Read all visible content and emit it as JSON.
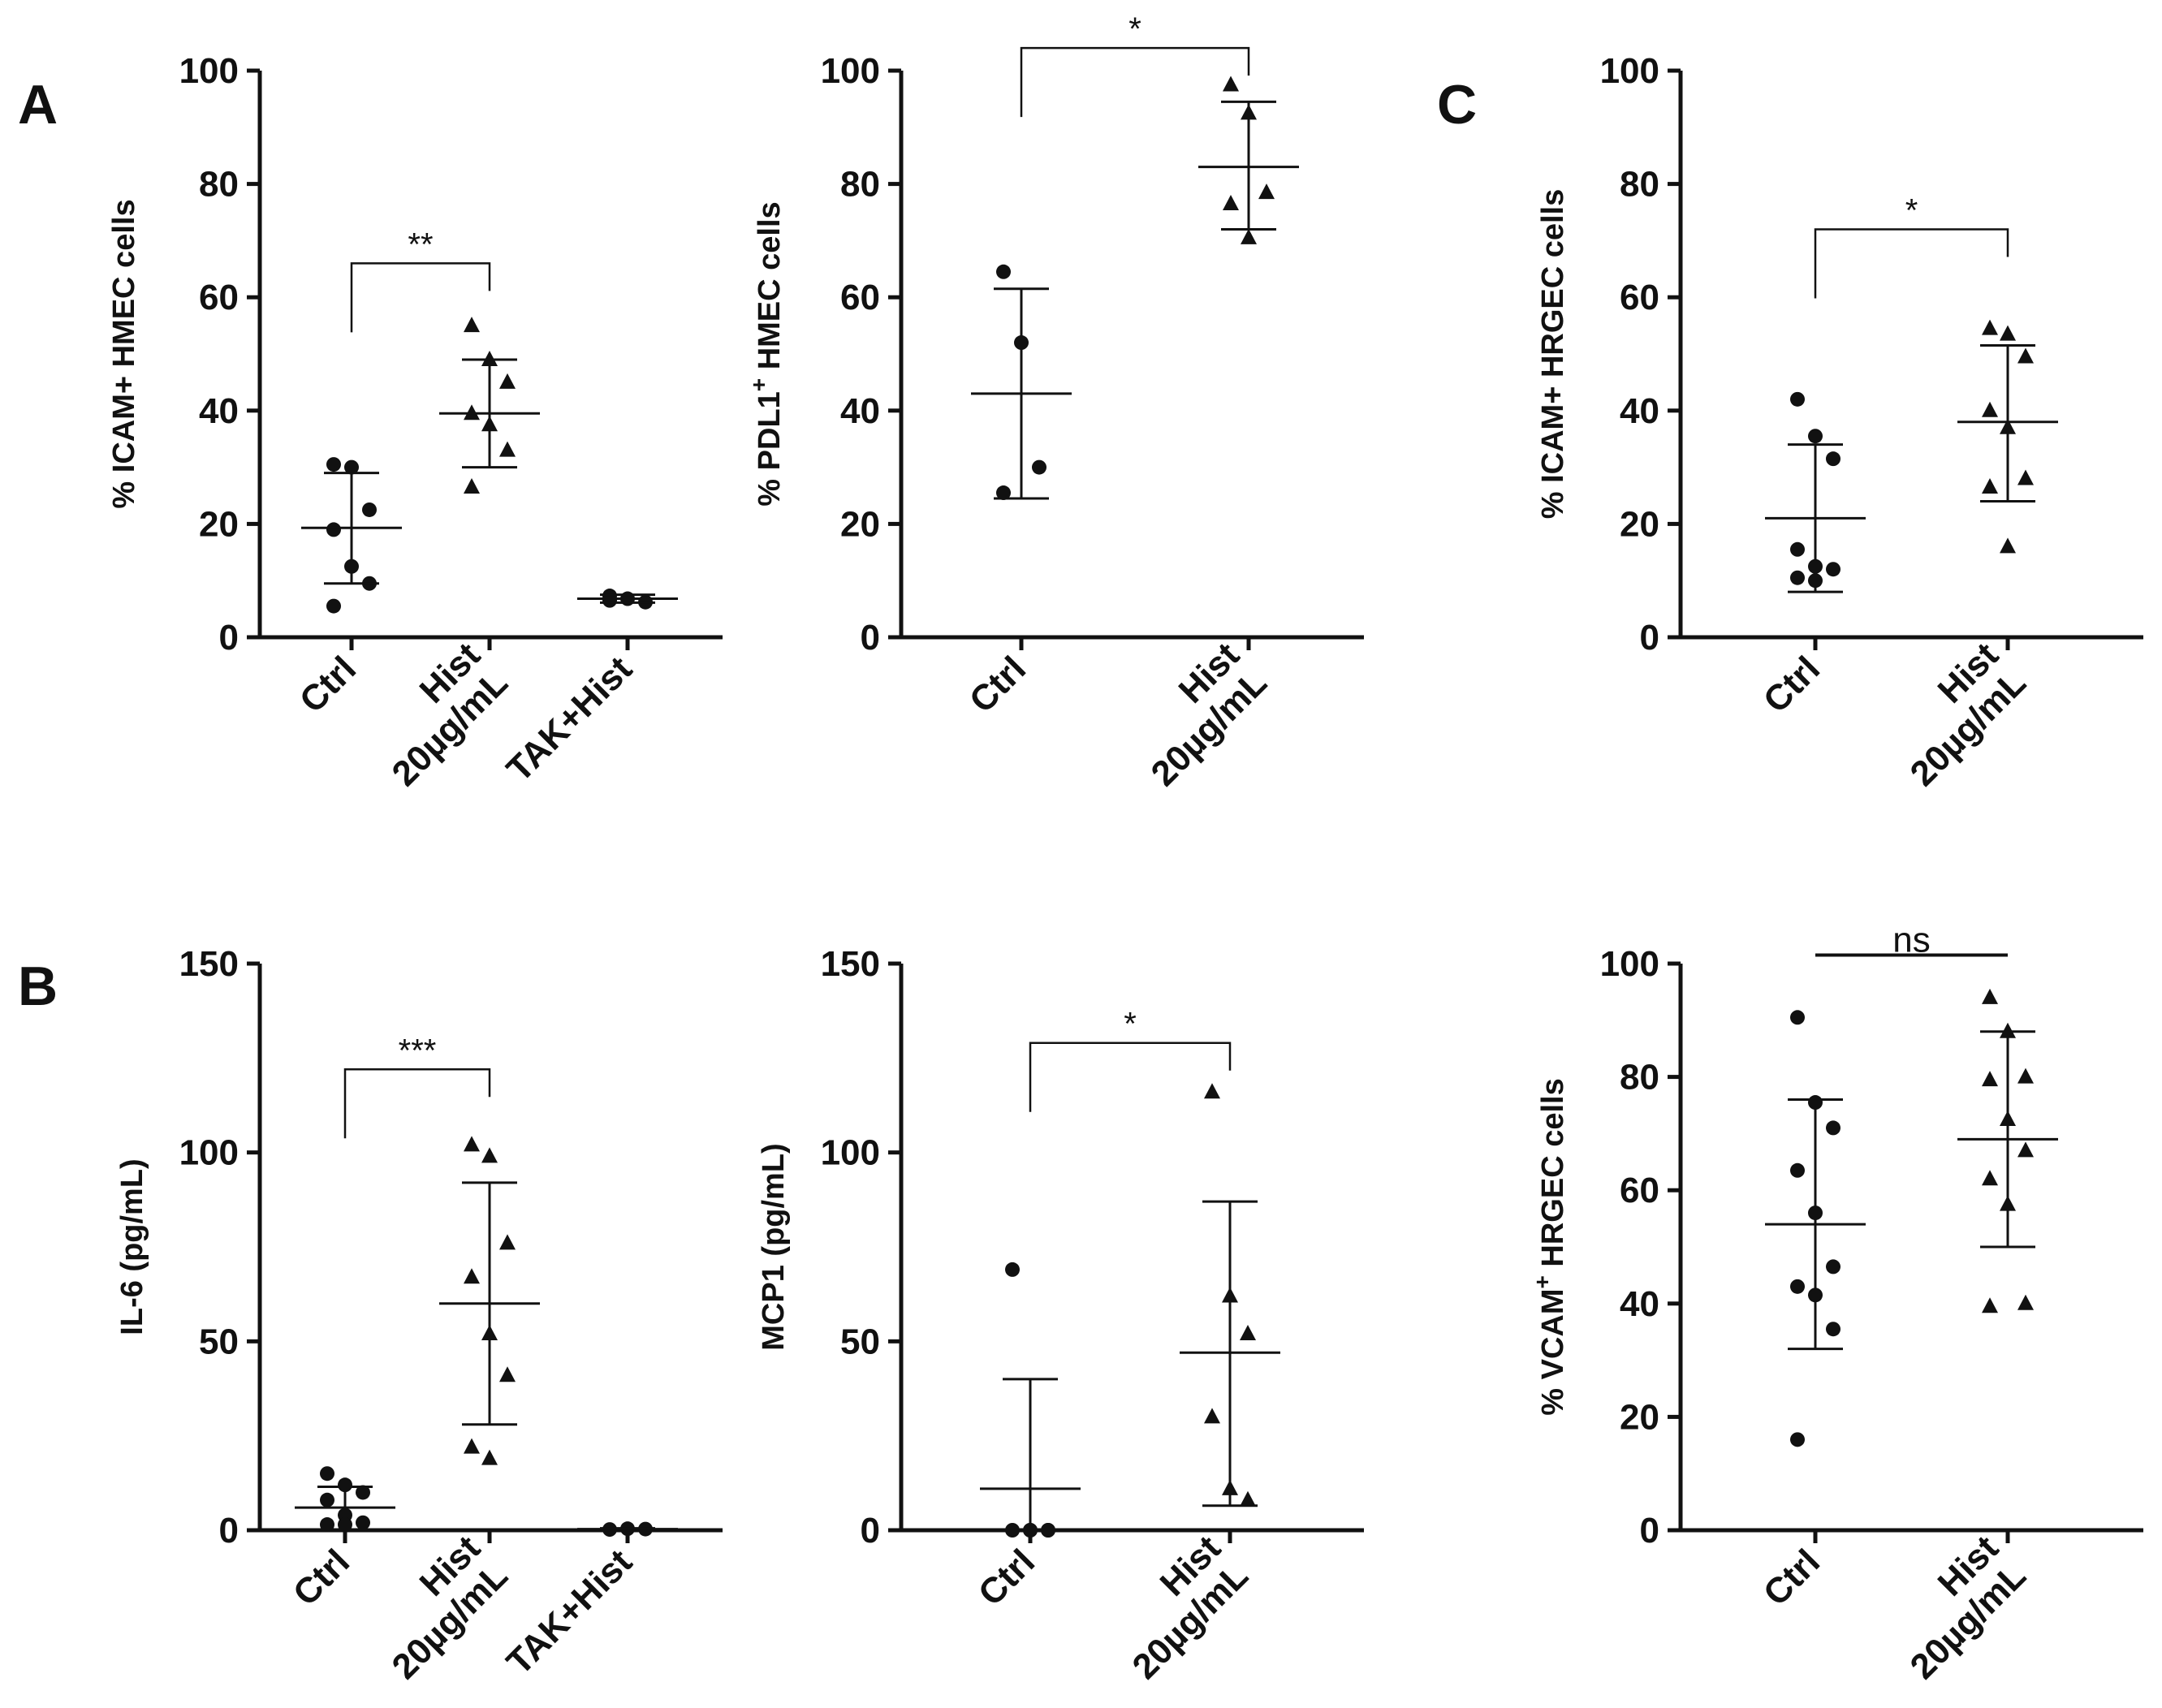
{
  "panel_letters": {
    "A": "A",
    "B": "B",
    "C": "C"
  },
  "chart_data": [
    {
      "id": "a1",
      "type": "scatter",
      "panel": "A",
      "ylabel": "%  ICAM+ HMEC cells",
      "ylim": [
        0,
        100
      ],
      "yticks": [
        0,
        20,
        40,
        60,
        80,
        100
      ],
      "categories": [
        {
          "lines": [
            "Ctrl"
          ]
        },
        {
          "lines": [
            "Hist",
            "20µg/mL"
          ]
        },
        {
          "lines": [
            "TAK+Hist"
          ]
        }
      ],
      "groups": [
        {
          "marker": "circle",
          "points": [
            30.5,
            30,
            22.5,
            19,
            12.5,
            9.5,
            5.5
          ],
          "mean": 19.3,
          "err": [
            9.5,
            29
          ]
        },
        {
          "marker": "triangle",
          "points": [
            55,
            49,
            45,
            39.5,
            37.5,
            33,
            26.5
          ],
          "mean": 39.5,
          "err": [
            30,
            49
          ]
        },
        {
          "marker": "circle",
          "points": [
            7.3,
            6.8,
            6.2,
            6.5
          ],
          "mean": 6.8,
          "err": [
            6.1,
            7.5
          ]
        }
      ],
      "significance": [
        {
          "from": 0,
          "to": 1,
          "label": "**",
          "style": "bracket",
          "y": 66
        }
      ]
    },
    {
      "id": "a2",
      "type": "scatter",
      "panel": "A",
      "ylabel": "% PDL1",
      "ylabel_sup": "+",
      "ylabel_rest": " HMEC cells",
      "ylim": [
        0,
        100
      ],
      "yticks": [
        0,
        20,
        40,
        60,
        80,
        100
      ],
      "categories": [
        {
          "lines": [
            "Ctrl"
          ]
        },
        {
          "lines": [
            "Hist",
            "20µg/mL"
          ]
        }
      ],
      "groups": [
        {
          "marker": "circle",
          "points": [
            64.5,
            52,
            30,
            25.5
          ],
          "mean": 43,
          "err": [
            24.5,
            61.5
          ]
        },
        {
          "marker": "triangle",
          "points": [
            97.5,
            92.5,
            78.5,
            76.5,
            70.5
          ],
          "mean": 83,
          "err": [
            72,
            94.5
          ]
        }
      ],
      "significance": [
        {
          "from": 0,
          "to": 1,
          "label": "*",
          "style": "bracket",
          "y": 104
        }
      ]
    },
    {
      "id": "c1",
      "type": "scatter",
      "panel": "C",
      "ylabel": "%  ICAM+ HRGEC cells",
      "ylim": [
        0,
        100
      ],
      "yticks": [
        0,
        20,
        40,
        60,
        80,
        100
      ],
      "categories": [
        {
          "lines": [
            "Ctrl"
          ]
        },
        {
          "lines": [
            "Hist",
            "20µg/mL"
          ]
        }
      ],
      "groups": [
        {
          "marker": "circle",
          "points": [
            42,
            35.5,
            31.5,
            15.5,
            12.5,
            12,
            10.5,
            10
          ],
          "mean": 21,
          "err": [
            8,
            34
          ]
        },
        {
          "marker": "triangle",
          "points": [
            54.5,
            53.5,
            49.5,
            40,
            37,
            28,
            26.5,
            16
          ],
          "mean": 38,
          "err": [
            24,
            51.5
          ]
        }
      ],
      "significance": [
        {
          "from": 0,
          "to": 1,
          "label": "*",
          "style": "bracket",
          "y": 72
        }
      ]
    },
    {
      "id": "b1",
      "type": "scatter",
      "panel": "B",
      "ylabel": "IL-6 (pg/mL)",
      "ylim": [
        0,
        150
      ],
      "yticks": [
        0,
        50,
        100,
        150
      ],
      "categories": [
        {
          "lines": [
            "Ctrl"
          ]
        },
        {
          "lines": [
            "Hist",
            "20µg/mL"
          ]
        },
        {
          "lines": [
            "TAK+Hist"
          ]
        }
      ],
      "groups": [
        {
          "marker": "circle",
          "points": [
            15,
            12,
            10,
            8,
            4,
            2,
            1.5,
            1.5
          ],
          "mean": 6,
          "err": [
            0,
            11.5
          ]
        },
        {
          "marker": "triangle",
          "points": [
            102,
            99,
            76,
            67,
            52,
            41,
            22,
            19
          ],
          "mean": 60,
          "err": [
            28,
            92
          ]
        },
        {
          "marker": "circle",
          "points": [
            0.2,
            0.4,
            0.3
          ],
          "mean": 0.3,
          "err": [
            0.1,
            0.5
          ]
        }
      ],
      "significance": [
        {
          "from": 0,
          "to": 1,
          "label": "***",
          "style": "bracket",
          "y": 122
        }
      ]
    },
    {
      "id": "b2",
      "type": "scatter",
      "panel": "B",
      "ylabel": "MCP1 (pg/mL)",
      "ylim": [
        0,
        150
      ],
      "yticks": [
        0,
        50,
        100,
        150
      ],
      "categories": [
        {
          "lines": [
            "Ctrl"
          ]
        },
        {
          "lines": [
            "Hist",
            "20µg/mL"
          ]
        }
      ],
      "groups": [
        {
          "marker": "circle",
          "points": [
            69,
            0,
            0,
            0,
            0,
            0
          ],
          "mean": 11,
          "err": [
            0,
            40
          ]
        },
        {
          "marker": "triangle",
          "points": [
            116,
            62,
            52,
            30,
            11,
            8
          ],
          "mean": 47,
          "err": [
            6.5,
            87
          ]
        },
        {
          "marker": "none",
          "points": [],
          "mean": null,
          "err": null
        }
      ],
      "significance": [
        {
          "from": 0,
          "to": 1,
          "label": "*",
          "style": "bracket",
          "y": 129
        }
      ]
    },
    {
      "id": "c2",
      "type": "scatter",
      "panel": "C",
      "ylabel": "% VCAM",
      "ylabel_sup": "+",
      "ylabel_rest": " HRGEC cells",
      "ylim": [
        0,
        100
      ],
      "yticks": [
        0,
        20,
        40,
        60,
        80,
        100
      ],
      "categories": [
        {
          "lines": [
            "Ctrl"
          ]
        },
        {
          "lines": [
            "Hist",
            "20µg/mL"
          ]
        }
      ],
      "groups": [
        {
          "marker": "circle",
          "points": [
            90.5,
            75.5,
            71,
            63.5,
            56,
            46.5,
            43,
            41.5,
            35.5,
            16
          ],
          "mean": 54,
          "err": [
            32,
            76
          ]
        },
        {
          "marker": "triangle",
          "points": [
            94,
            88,
            80,
            79.5,
            72.5,
            67,
            62,
            57.5,
            40,
            39.5
          ],
          "mean": 69,
          "err": [
            50,
            88
          ]
        }
      ],
      "significance": [
        {
          "from": 0,
          "to": 1,
          "label": "ns",
          "style": "bar",
          "y": 101.5
        }
      ]
    }
  ]
}
